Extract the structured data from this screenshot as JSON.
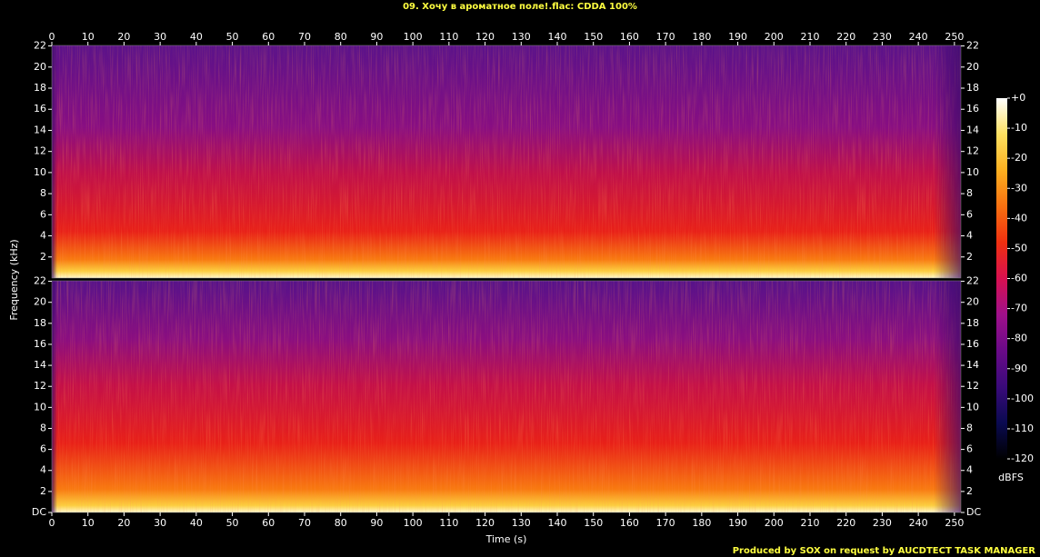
{
  "chart_data": {
    "type": "spectrogram",
    "title": "09. Хочу в ароматное поле!.flac: CDDA 100%",
    "x_label": "Time (s)",
    "y_label": "Frequency (kHz)",
    "xlim": [
      0,
      251.8
    ],
    "xticks": [
      0,
      10,
      20,
      30,
      40,
      50,
      60,
      70,
      80,
      90,
      100,
      110,
      120,
      130,
      140,
      150,
      160,
      170,
      180,
      190,
      200,
      210,
      220,
      230,
      240,
      250
    ],
    "channels": [
      {
        "ylim": [
          0,
          22.05
        ],
        "yticks": [
          2,
          4,
          6,
          8,
          10,
          12,
          14,
          16,
          18,
          20,
          22
        ]
      },
      {
        "ylim": [
          0,
          22.05
        ],
        "yticks": [
          {
            "value": 0,
            "label": "DC"
          },
          2,
          4,
          6,
          8,
          10,
          12,
          14,
          16,
          18,
          20,
          22
        ]
      }
    ],
    "colorbar": {
      "label": "dBFS",
      "lim": [
        -120,
        0
      ],
      "ticks": [
        {
          "value": 0,
          "label": "+0"
        },
        -10,
        -20,
        -30,
        -40,
        -50,
        -60,
        -70,
        -80,
        -90,
        -100,
        -110,
        -120
      ],
      "colors": [
        "#000000",
        "#0a0a50",
        "#3a0a7a",
        "#6a0a88",
        "#a0108a",
        "#d81050",
        "#f03010",
        "#f87010",
        "#fcb020",
        "#fde060",
        "#ffffff"
      ]
    },
    "footer": "Produced by SOX on request by AUCDTECT TASK MANAGER"
  }
}
